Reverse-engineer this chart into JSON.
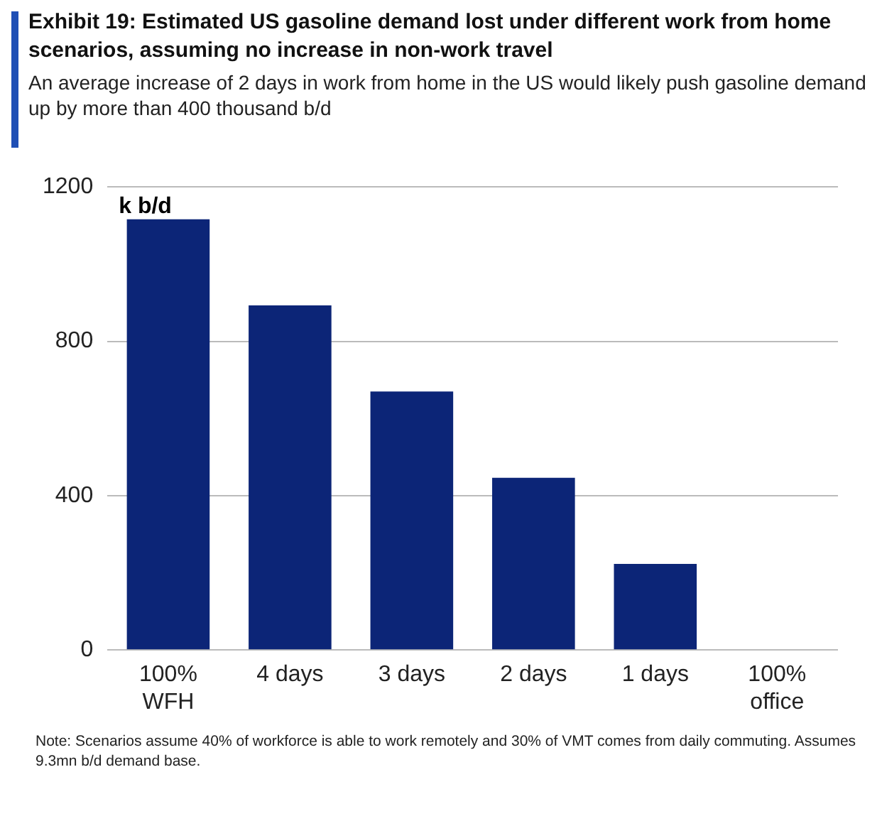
{
  "chart_data": {
    "type": "bar",
    "title": "Exhibit 19: Estimated US gasoline demand lost under different work from home scenarios, assuming no increase in non-work travel",
    "subtitle": "An average increase of 2 days in work from home in the US would likely push gasoline demand up by more than 400 thousand b/d",
    "ylabel": "k b/d",
    "categories": [
      "100%\nWFH",
      "4 days",
      "3 days",
      "2 days",
      "1 days",
      "100%\noffice"
    ],
    "values": [
      1116,
      893,
      670,
      446,
      223,
      0
    ],
    "color": "#0c2577",
    "ylim": [
      0,
      1200
    ],
    "yticks": [
      0,
      400,
      800,
      1200
    ],
    "grid": "y",
    "annotations": [
      "Note: Scenarios assume 40% of workforce is able to work remotely and 30% of VMT comes from daily commuting. Assumes 9.3mn b/d demand base."
    ]
  }
}
